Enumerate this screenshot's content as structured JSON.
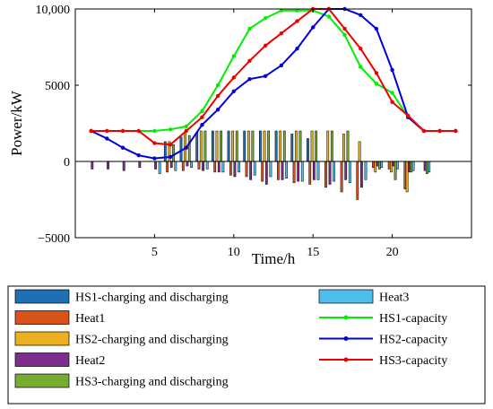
{
  "chart_data": {
    "type": "bar+line",
    "xlabel": "Time/h",
    "ylabel": "Power/kW",
    "xlim": [
      0,
      25
    ],
    "ylim": [
      -5000,
      10000
    ],
    "xticks": [
      5,
      10,
      15,
      20
    ],
    "yticks": [
      -5000,
      0,
      5000,
      10000
    ],
    "ytick_labels": [
      "−5000",
      "0",
      "5000",
      "10,000"
    ],
    "grid": false,
    "legend_position": "bottom",
    "categories": [
      1,
      2,
      3,
      4,
      5,
      6,
      7,
      8,
      9,
      10,
      11,
      12,
      13,
      14,
      15,
      16,
      17,
      18,
      19,
      20,
      21,
      22,
      23,
      24
    ],
    "bar_series": [
      {
        "name": "HS1-charging and discharging",
        "color": "#1f6fb4",
        "values": [
          0,
          0,
          0,
          0,
          0,
          1300,
          1600,
          1900,
          2000,
          2000,
          2000,
          2000,
          2000,
          1800,
          1500,
          0,
          0,
          0,
          0,
          0,
          0,
          0,
          0,
          0
        ]
      },
      {
        "name": "Heat1",
        "color": "#d95319",
        "values": [
          0,
          0,
          0,
          0,
          0,
          -700,
          -600,
          -500,
          -700,
          -900,
          -1000,
          -1300,
          -1200,
          -1400,
          -1500,
          -1700,
          -2000,
          -2500,
          -400,
          -500,
          -1800,
          0,
          0,
          0
        ]
      },
      {
        "name": "HS2-charging and discharging",
        "color": "#edb120",
        "values": [
          0,
          0,
          0,
          0,
          0,
          1300,
          1900,
          2000,
          2000,
          2000,
          2000,
          2000,
          2000,
          2000,
          2000,
          2000,
          1800,
          1300,
          -700,
          -700,
          -2000,
          0,
          0,
          0
        ]
      },
      {
        "name": "Heat2",
        "color": "#7e2f8e",
        "values": [
          -500,
          -500,
          -600,
          -400,
          -500,
          -400,
          -300,
          -600,
          -700,
          -1000,
          -1200,
          -1500,
          -1200,
          -1300,
          -1200,
          -1500,
          -1200,
          -1700,
          -300,
          -300,
          -700,
          -600,
          0,
          0
        ]
      },
      {
        "name": "HS3-charging and discharging",
        "color": "#77ac30",
        "values": [
          0,
          0,
          0,
          0,
          0,
          1100,
          1700,
          2000,
          2000,
          2000,
          2000,
          2000,
          2000,
          2000,
          2000,
          2000,
          2000,
          0,
          -500,
          -1200,
          -700,
          -800,
          0,
          0
        ]
      },
      {
        "name": "Heat3",
        "color": "#4dbeee",
        "values": [
          0,
          0,
          0,
          0,
          -800,
          -600,
          -400,
          -500,
          -700,
          -700,
          -900,
          -1000,
          -1100,
          -1300,
          -1200,
          -1300,
          -1400,
          -1200,
          -400,
          -500,
          -600,
          -700,
          0,
          0
        ]
      }
    ],
    "line_series": [
      {
        "name": "HS1-capacity",
        "color": "#00ee00",
        "values": [
          2000,
          2000,
          2000,
          2000,
          2000,
          2100,
          2300,
          3300,
          5000,
          6900,
          8700,
          9400,
          9900,
          9900,
          9900,
          9500,
          8300,
          6200,
          5100,
          4500,
          2900,
          2000,
          2000,
          2000
        ]
      },
      {
        "name": "HS2-capacity",
        "color": "#0000dd",
        "values": [
          2000,
          1500,
          900,
          400,
          200,
          300,
          900,
          2400,
          3400,
          4600,
          5400,
          5600,
          6300,
          7400,
          8800,
          10000,
          10000,
          9600,
          8700,
          6000,
          2900,
          2000,
          2000,
          2000
        ]
      },
      {
        "name": "HS3-capacity",
        "color": "#ee0000",
        "values": [
          2000,
          2000,
          2000,
          2000,
          1200,
          1100,
          2000,
          2900,
          4300,
          5500,
          6600,
          7600,
          8400,
          9200,
          10000,
          10000,
          8700,
          7400,
          5800,
          3900,
          3000,
          2000,
          2000,
          2000
        ]
      }
    ],
    "legend_left": [
      {
        "name": "HS1-charging and discharging",
        "kind": "bar",
        "color": "#1f6fb4"
      },
      {
        "name": "Heat1",
        "kind": "bar",
        "color": "#d95319"
      },
      {
        "name": "HS2-charging and discharging",
        "kind": "bar",
        "color": "#edb120"
      },
      {
        "name": "Heat2",
        "kind": "bar",
        "color": "#7e2f8e"
      },
      {
        "name": "HS3-charging and discharging",
        "kind": "bar",
        "color": "#77ac30"
      }
    ],
    "legend_right": [
      {
        "name": "Heat3",
        "kind": "bar",
        "color": "#4dbeee"
      },
      {
        "name": "HS1-capacity",
        "kind": "line",
        "color": "#00ee00"
      },
      {
        "name": "HS2-capacity",
        "kind": "line",
        "color": "#0000dd"
      },
      {
        "name": "HS3-capacity",
        "kind": "line",
        "color": "#ee0000"
      }
    ]
  }
}
